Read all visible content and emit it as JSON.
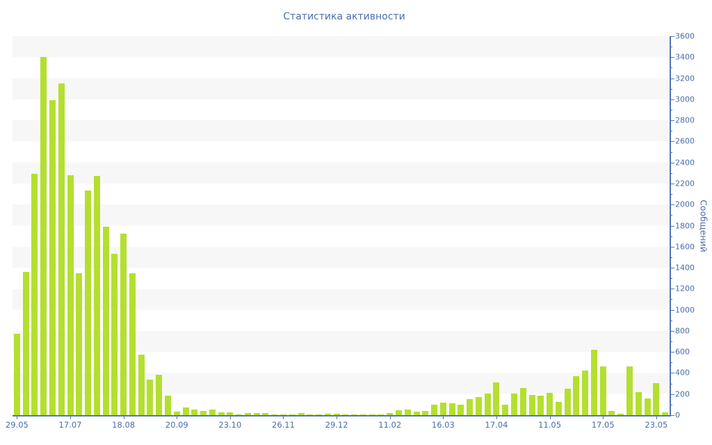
{
  "title": "Статистика активности",
  "y_axis_title": "Сообщений",
  "colors": {
    "bar": "#b4df30",
    "axis_line": "#5574b5",
    "tick_label": "#4a6dab",
    "title_text": "#4a6fb0",
    "stripe": "#f7f7f7",
    "background": "#ffffff"
  },
  "chart_data": {
    "type": "bar",
    "title": "Статистика активности",
    "xlabel": "",
    "ylabel": "Сообщений",
    "ylim": [
      0,
      3600
    ],
    "y_major_tick_step": 200,
    "y_minor_tick_step": 100,
    "legend": "none",
    "grid": "alternating horizontal bands of 200 units, light gray / white",
    "x_tick_labels": [
      "29.05",
      "17.07",
      "18.08",
      "20.09",
      "23.10",
      "26.11",
      "29.12",
      "11.02",
      "16.03",
      "17.04",
      "11.05",
      "17.05",
      "23.05"
    ],
    "x_label_every_n_bars": 6,
    "values": [
      775,
      1360,
      2290,
      3400,
      2990,
      3150,
      2280,
      1350,
      2135,
      2275,
      1790,
      1535,
      1725,
      1350,
      575,
      335,
      385,
      185,
      30,
      70,
      50,
      40,
      50,
      25,
      25,
      8,
      18,
      20,
      20,
      10,
      4,
      5,
      18,
      5,
      10,
      13,
      13,
      3,
      3,
      5,
      9,
      4,
      18,
      45,
      55,
      30,
      40,
      100,
      120,
      110,
      100,
      155,
      175,
      205,
      310,
      100,
      205,
      260,
      190,
      185,
      210,
      125,
      250,
      370,
      425,
      620,
      460,
      40,
      15,
      460,
      220,
      160,
      305,
      25
    ]
  }
}
